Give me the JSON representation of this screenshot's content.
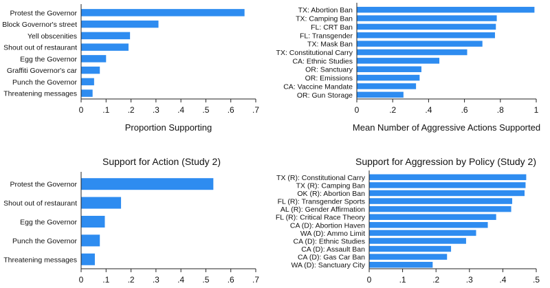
{
  "accent_color": "#2e8cf0",
  "chart_data": [
    {
      "type": "bar",
      "title": "",
      "categories": [
        "Protest the Governor",
        "Block Governor's street",
        "Yell obscenities",
        "Shout out of restaurant",
        "Egg the Governor",
        "Graffiti Governor's car",
        "Punch the Governor",
        "Threatening messages"
      ],
      "values": [
        0.655,
        0.31,
        0.196,
        0.19,
        0.1,
        0.075,
        0.052,
        0.046
      ],
      "xlabel": "Proportion Supporting",
      "ylabel": "",
      "xlim": [
        0,
        0.7
      ],
      "ticks": [
        0,
        0.1,
        0.2,
        0.3,
        0.4,
        0.5,
        0.6,
        0.7
      ],
      "tick_labels": [
        "0",
        ".1",
        ".2",
        ".3",
        ".4",
        ".5",
        ".6",
        ".7"
      ],
      "grid": false
    },
    {
      "type": "bar",
      "title": "",
      "categories": [
        "TX: Abortion Ban",
        "TX: Camping Ban",
        "FL: CRT Ban",
        "FL: Transgender",
        "TX: Mask Ban",
        "TX: Constitutional Carry",
        "CA: Ethnic Studies",
        "OR: Sanctuary",
        "OR: Emissions",
        "CA: Vaccine Mandate",
        "OR: Gun Storage"
      ],
      "values": [
        0.99,
        0.78,
        0.775,
        0.77,
        0.7,
        0.615,
        0.46,
        0.36,
        0.35,
        0.33,
        0.26
      ],
      "xlabel": "Mean Number of Aggressive Actions Supported",
      "ylabel": "",
      "xlim": [
        0,
        1
      ],
      "ticks": [
        0,
        0.2,
        0.4,
        0.6,
        0.8,
        1
      ],
      "tick_labels": [
        "0",
        ".2",
        ".4",
        ".6",
        ".8",
        "1"
      ],
      "grid": false
    },
    {
      "type": "bar",
      "title": "Support for Action (Study 2)",
      "categories": [
        "Protest the Governor",
        "Shout out of restaurant",
        "Egg the Governor",
        "Punch the Governor",
        "Threatening messages"
      ],
      "values": [
        0.53,
        0.16,
        0.095,
        0.075,
        0.055
      ],
      "xlabel": "",
      "ylabel": "",
      "xlim": [
        0,
        0.7
      ],
      "ticks": [
        0,
        0.1,
        0.2,
        0.3,
        0.4,
        0.5,
        0.6,
        0.7
      ],
      "tick_labels": [
        "0",
        ".1",
        ".2",
        ".3",
        ".4",
        ".5",
        ".6",
        ".7"
      ],
      "grid": false
    },
    {
      "type": "bar",
      "title": "Support for Aggression by Policy (Study 2)",
      "categories": [
        "TX (R): Constitutional Carry",
        "TX (R): Camping Ban",
        "OK (R): Abortion Ban",
        "FL (R): Transgender Sports",
        "AL (R): Gender Affirmation",
        "FL (R): Critical Race Theory",
        "CA (D): Abortion Haven",
        "WA (D): Ammo Limit",
        "CA (D): Ethnic Studies",
        "CA (D): Assault Ban",
        "CA (D): Gas Car Ban",
        "WA (D): Sanctuary City"
      ],
      "values": [
        0.47,
        0.468,
        0.465,
        0.428,
        0.425,
        0.38,
        0.355,
        0.32,
        0.29,
        0.245,
        0.233,
        0.19
      ],
      "xlabel": "",
      "ylabel": "",
      "xlim": [
        0,
        0.5
      ],
      "ticks": [
        0,
        0.1,
        0.2,
        0.3,
        0.4,
        0.5
      ],
      "tick_labels": [
        "0",
        ".1",
        ".2",
        ".3",
        ".4",
        ".5"
      ],
      "grid": false
    }
  ]
}
